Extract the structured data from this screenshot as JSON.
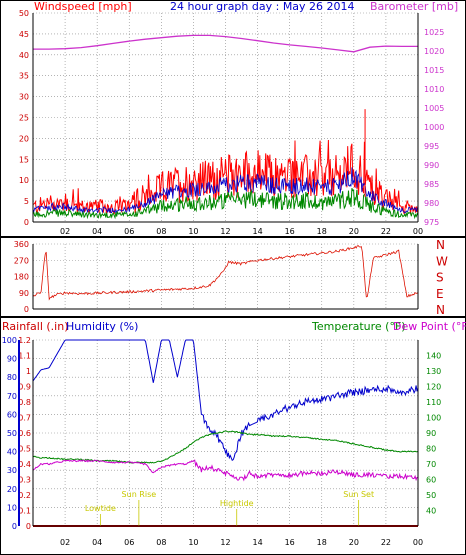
{
  "header": {
    "left": "Windspeed [mph]",
    "center": "24 hour graph day : May 26 2014",
    "right": "Barometer [mb]"
  },
  "lower_labels": {
    "rain": "Rainfall (.in)",
    "humidity": "Humidity (%)",
    "temp": "Temperature (°F)",
    "dew": "Dew Point (°F)"
  },
  "colors": {
    "wind": "#ff0000",
    "gust": "#0000cc",
    "avg": "#008800",
    "baro": "#cc33cc",
    "dir": "#dd1100",
    "hum": "#0000cc",
    "temp": "#008800",
    "dew": "#cc00cc",
    "rain": "#cc0000",
    "ann": "#c8c800"
  },
  "time_ticks": [
    "02",
    "04",
    "06",
    "08",
    "10",
    "12",
    "14",
    "16",
    "18",
    "20",
    "22",
    "00"
  ],
  "annotations": [
    {
      "text": "Lowtide",
      "hour": 4.2
    },
    {
      "text": "Sun Rise",
      "hour": 6.6
    },
    {
      "text": "Hightide",
      "hour": 12.7
    },
    {
      "text": "Sun Set",
      "hour": 20.3
    }
  ],
  "chart_data": [
    {
      "type": "line",
      "title": "24 hour graph day : May 26 2014",
      "xlabel": "",
      "ylabel": "Windspeed [mph]",
      "ylim": [
        0,
        50
      ],
      "yticks": [
        0,
        5,
        10,
        15,
        20,
        25,
        30,
        35,
        40,
        45,
        50
      ],
      "y2label": "Barometer [mb]",
      "y2lim": [
        975,
        1030
      ],
      "y2ticks": [
        975,
        980,
        985,
        990,
        995,
        1000,
        1005,
        1010,
        1015,
        1020,
        1025
      ],
      "x_hours": [
        0,
        1,
        2,
        3,
        4,
        5,
        6,
        7,
        8,
        9,
        10,
        11,
        12,
        13,
        14,
        15,
        16,
        17,
        18,
        19,
        20,
        21,
        22,
        23,
        24
      ],
      "series": [
        {
          "name": "Windspeed",
          "values": [
            4,
            5,
            5,
            4,
            4,
            4,
            4,
            6,
            9,
            10,
            11,
            11,
            12,
            13,
            13,
            12,
            12,
            12,
            11,
            12,
            15,
            9,
            6,
            4,
            4
          ]
        },
        {
          "name": "Barometer",
          "values": [
            1020.5,
            1020.5,
            1020.6,
            1020.9,
            1021.4,
            1022.0,
            1022.6,
            1023.1,
            1023.5,
            1023.9,
            1024.1,
            1024.1,
            1023.8,
            1023.3,
            1022.7,
            1022.1,
            1021.6,
            1021.2,
            1020.8,
            1020.3,
            1019.8,
            1021.0,
            1021.3,
            1021.2,
            1021.2
          ]
        }
      ]
    },
    {
      "type": "line",
      "ylabel": "",
      "ylim": [
        0,
        360
      ],
      "yticks": [
        0,
        90,
        180,
        270,
        360
      ],
      "direction_labels": [
        "N",
        "W",
        "S",
        "E",
        "N"
      ],
      "x_hours": [
        0,
        0.5,
        0.8,
        1.0,
        1.5,
        2,
        3,
        4,
        5,
        6,
        7,
        8,
        9,
        10,
        11,
        11.8,
        12.2,
        13,
        14,
        15,
        16,
        17,
        18,
        19,
        20,
        20.5,
        20.8,
        21.2,
        22,
        22.8,
        23.3,
        24
      ],
      "series": [
        {
          "name": "Wind Direction",
          "values": [
            70,
            95,
            340,
            60,
            80,
            90,
            85,
            88,
            92,
            95,
            100,
            105,
            110,
            115,
            130,
            200,
            260,
            250,
            270,
            280,
            290,
            300,
            310,
            320,
            340,
            350,
            40,
            280,
            300,
            320,
            70,
            90
          ]
        }
      ]
    },
    {
      "type": "line",
      "ylabel": "Rainfall (.in) / Humidity (%)",
      "ylim": [
        0,
        100
      ],
      "yticks": [
        0,
        10,
        20,
        30,
        40,
        50,
        60,
        70,
        80,
        90,
        100
      ],
      "rain_ticks": [
        "0",
        "0.1",
        "0.2",
        "0.3",
        "0.4",
        "0.5",
        "0.6",
        "0.7",
        "0.8",
        "0.9",
        "1",
        "1.1",
        "1.2"
      ],
      "y2label": "Temperature (°F) / Dew Point (°F)",
      "y2lim": [
        30,
        150
      ],
      "y2ticks": [
        40,
        50,
        60,
        70,
        80,
        90,
        100,
        110,
        120,
        130,
        140
      ],
      "x_hours": [
        0,
        0.5,
        1,
        2,
        3,
        4,
        5,
        6,
        7,
        7.5,
        8,
        8.5,
        9,
        9.5,
        10,
        10.5,
        11,
        11.5,
        12,
        12.5,
        13,
        13.5,
        14,
        15,
        16,
        17,
        18,
        19,
        20,
        21,
        22,
        23,
        24
      ],
      "series": [
        {
          "name": "Humidity",
          "values": [
            78,
            84,
            85,
            100,
            100,
            100,
            100,
            100,
            100,
            77,
            100,
            100,
            80,
            100,
            100,
            60,
            52,
            48,
            40,
            36,
            50,
            54,
            56,
            60,
            64,
            67,
            68,
            70,
            72,
            73,
            74,
            72,
            74
          ]
        },
        {
          "name": "Temperature",
          "values": [
            75,
            74,
            74,
            73,
            73,
            72,
            72,
            71,
            71,
            71,
            72,
            74,
            77,
            80,
            84,
            87,
            89,
            90,
            91,
            91,
            90,
            89,
            89,
            88,
            88,
            87,
            86,
            85,
            83,
            81,
            79,
            78,
            78
          ]
        },
        {
          "name": "Dew Point",
          "values": [
            66,
            70,
            70,
            72,
            72,
            72,
            71,
            71,
            70,
            64,
            68,
            69,
            70,
            70,
            72,
            66,
            68,
            66,
            64,
            62,
            60,
            64,
            62,
            63,
            63,
            64,
            64,
            65,
            63,
            63,
            62,
            62,
            61
          ]
        },
        {
          "name": "Rainfall",
          "values": [
            0,
            0,
            0,
            0,
            0,
            0,
            0,
            0,
            0,
            0,
            0,
            0,
            0,
            0,
            0,
            0,
            0,
            0,
            0,
            0,
            0,
            0,
            0,
            0,
            0,
            0,
            0,
            0,
            0,
            0,
            0,
            0,
            0
          ]
        }
      ]
    }
  ]
}
